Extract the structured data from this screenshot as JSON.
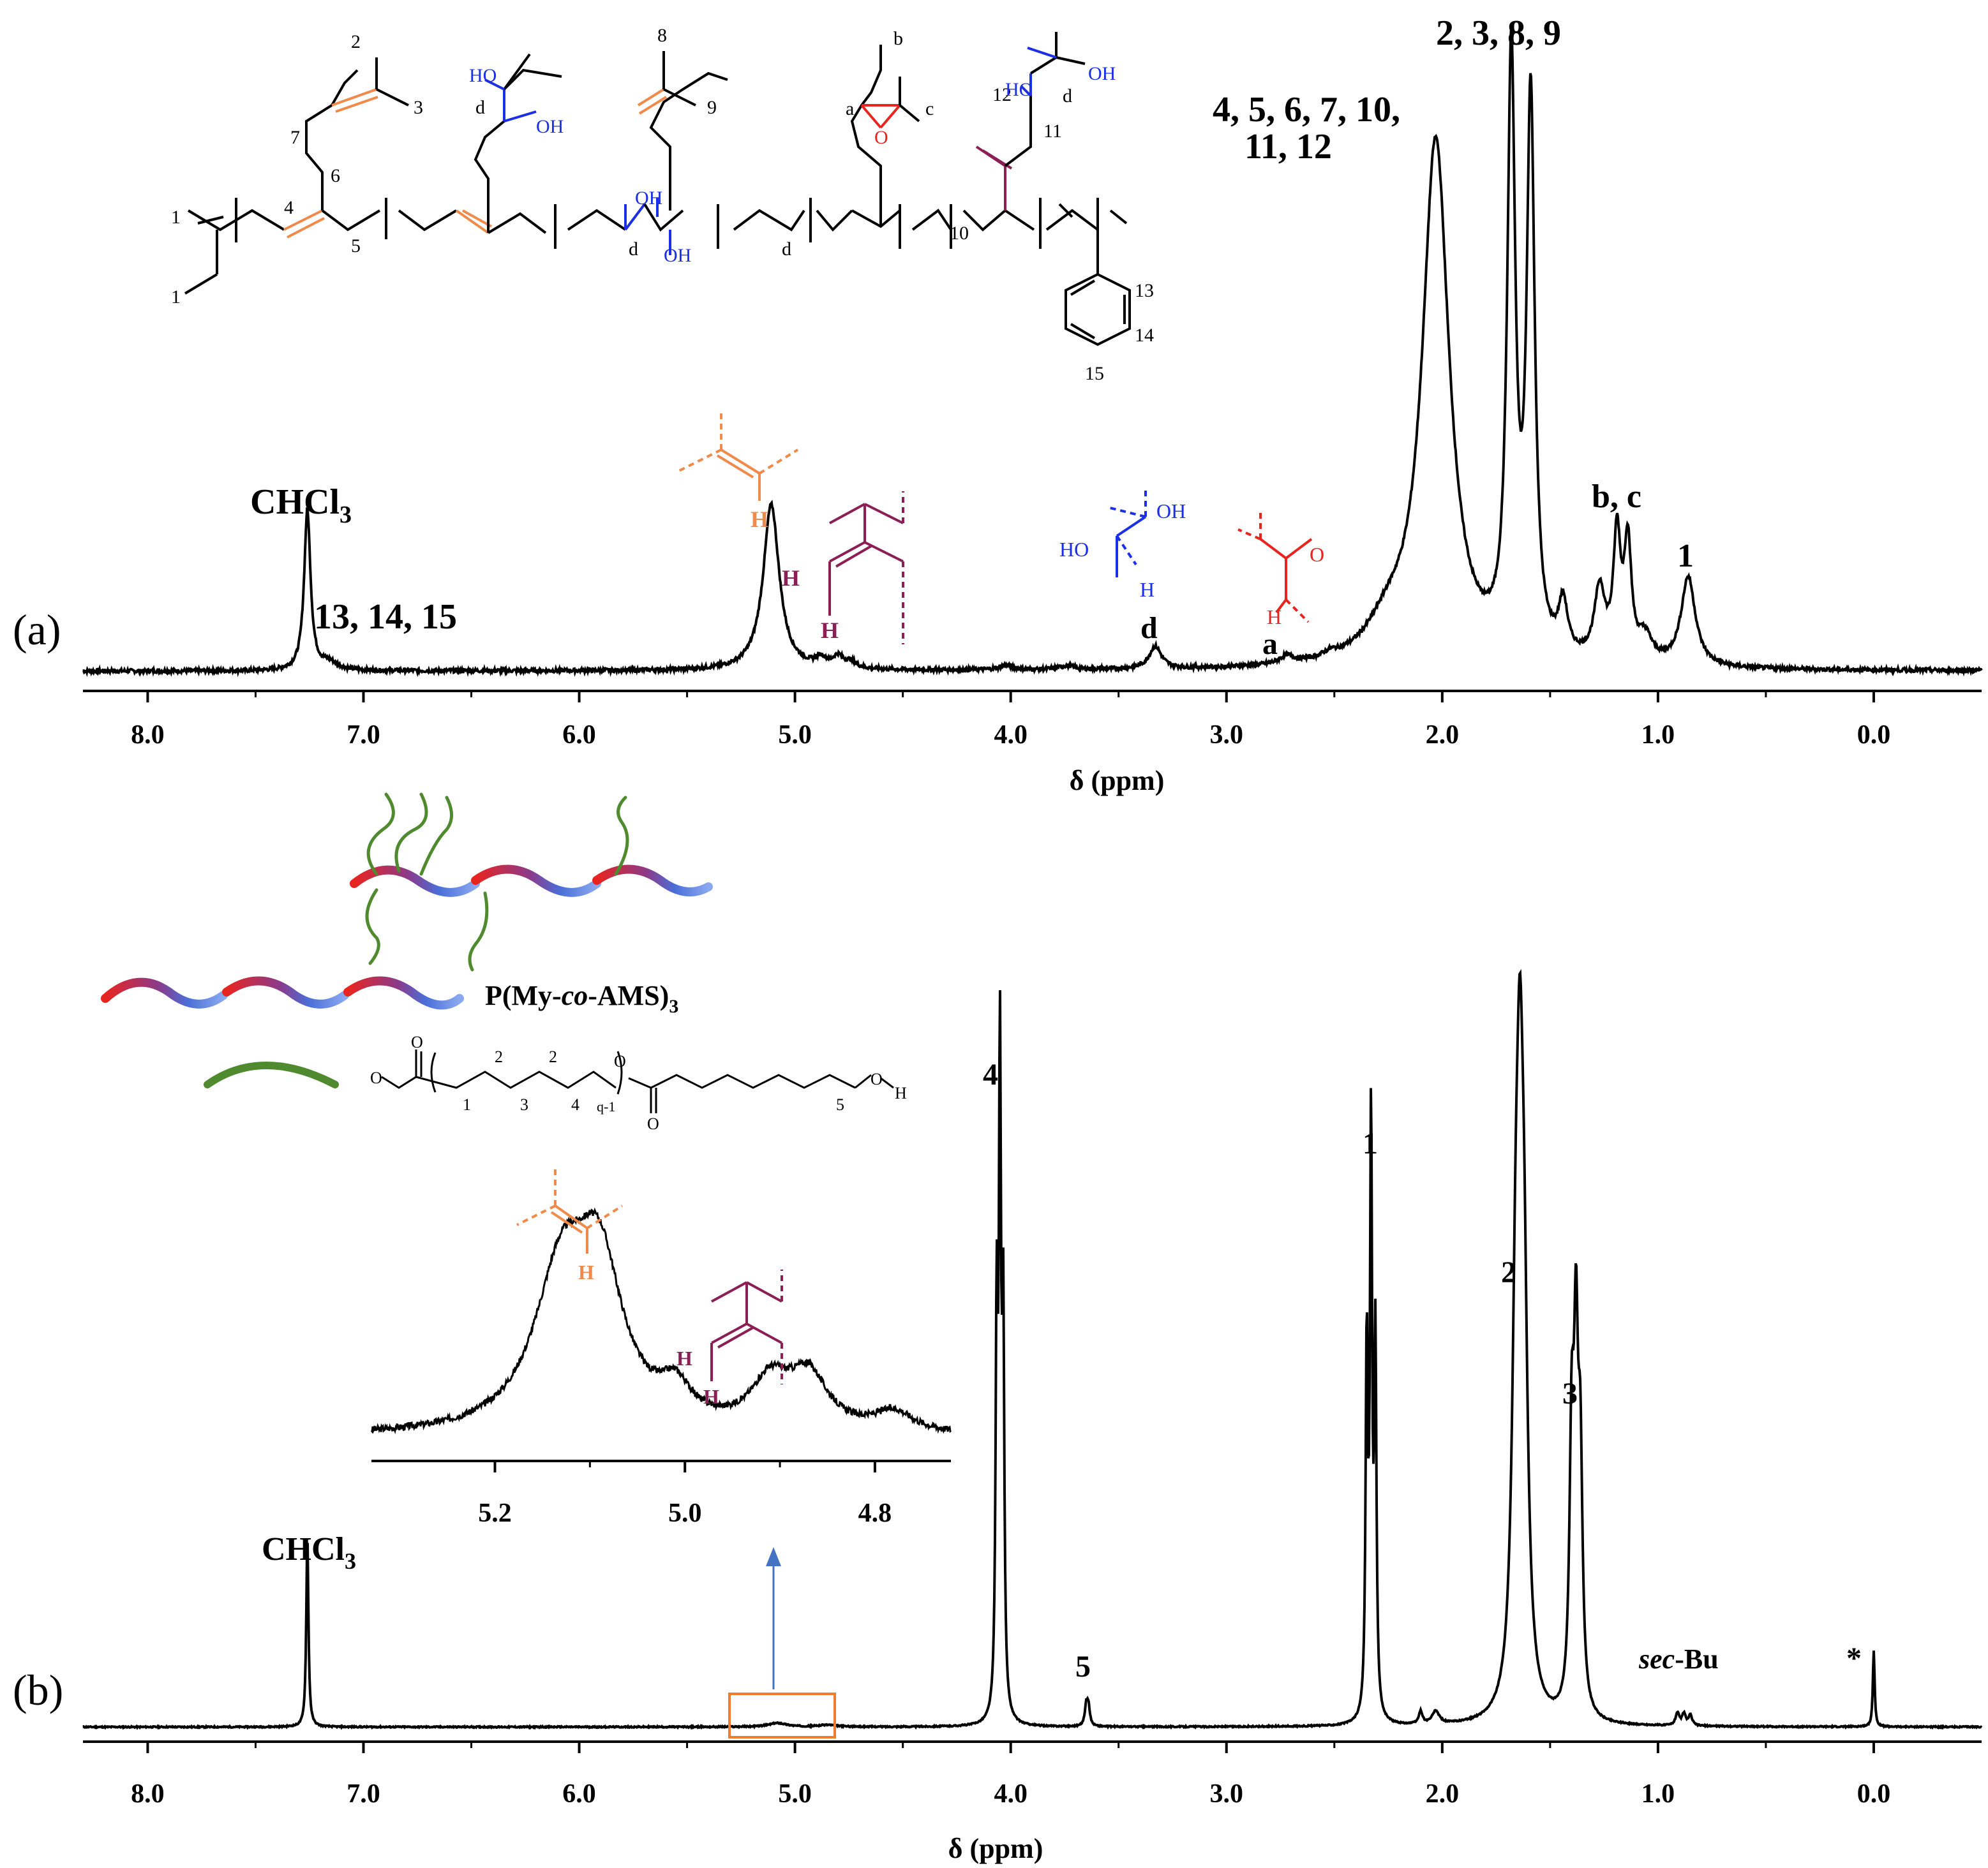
{
  "colors": {
    "ink": "#000000",
    "orange": "#f08a4b",
    "maroon": "#8b1f55",
    "blue": "#1a2fe6",
    "red": "#e8241f",
    "green": "#4f8a2e",
    "arrow_blue": "#4472c4",
    "box_orange": "#ed7d31"
  },
  "chart_data": [
    {
      "type": "line",
      "panel_label": "(a)",
      "xlabel": "δ (ppm)",
      "x_reversed": true,
      "xlim": [
        8.3,
        -0.5
      ],
      "x_ticks": [
        8.0,
        7.0,
        6.0,
        5.0,
        4.0,
        3.0,
        2.0,
        1.0,
        0.0
      ],
      "x_tick_labels": [
        "8.0",
        "7.0",
        "6.0",
        "5.0",
        "4.0",
        "3.0",
        "2.0",
        "1.0",
        "0.0"
      ],
      "peaks": [
        {
          "shift": 7.26,
          "height": 0.25,
          "width": 0.018
        },
        {
          "shift": 7.16,
          "height": 0.012,
          "width": 0.05
        },
        {
          "shift": 5.11,
          "height": 0.26,
          "width": 0.045
        },
        {
          "shift": 4.88,
          "height": 0.014,
          "width": 0.03
        },
        {
          "shift": 4.8,
          "height": 0.018,
          "width": 0.03
        },
        {
          "shift": 4.74,
          "height": 0.01,
          "width": 0.03
        },
        {
          "shift": 4.02,
          "height": 0.007,
          "width": 0.04
        },
        {
          "shift": 3.74,
          "height": 0.006,
          "width": 0.04
        },
        {
          "shift": 3.33,
          "height": 0.035,
          "width": 0.035
        },
        {
          "shift": 2.72,
          "height": 0.012,
          "width": 0.04
        },
        {
          "shift": 2.52,
          "height": 0.007,
          "width": 0.04
        },
        {
          "shift": 2.25,
          "height": 0.05,
          "width": 0.12
        },
        {
          "shift": 2.03,
          "height": 0.82,
          "width": 0.075
        },
        {
          "shift": 1.68,
          "height": 0.92,
          "width": 0.022
        },
        {
          "shift": 1.59,
          "height": 0.86,
          "width": 0.022
        },
        {
          "shift": 1.44,
          "height": 0.08,
          "width": 0.025
        },
        {
          "shift": 1.27,
          "height": 0.11,
          "width": 0.03
        },
        {
          "shift": 1.19,
          "height": 0.19,
          "width": 0.02
        },
        {
          "shift": 1.14,
          "height": 0.18,
          "width": 0.02
        },
        {
          "shift": 1.06,
          "height": 0.04,
          "width": 0.04
        },
        {
          "shift": 0.86,
          "height": 0.14,
          "width": 0.04
        }
      ],
      "annotations": [
        {
          "text": "CHCl",
          "sub": "3",
          "shift": 7.26
        },
        {
          "text": "13, 14, 15",
          "shift": 6.75
        },
        {
          "text": "d",
          "shift": 3.33
        },
        {
          "text": "a",
          "shift": 2.72
        },
        {
          "text": "4, 5, 6, 7, 10,",
          "shift": 2.7
        },
        {
          "text": "11, 12",
          "shift": 2.4
        },
        {
          "text": "2, 3, 8, 9",
          "shift": 1.66
        },
        {
          "text": "b, c",
          "shift": 1.18
        },
        {
          "text": "1",
          "shift": 0.86
        }
      ]
    },
    {
      "type": "line",
      "panel_label": "(b)",
      "xlabel": "δ (ppm)",
      "x_reversed": true,
      "xlim": [
        8.3,
        -0.5
      ],
      "x_ticks": [
        8.0,
        7.0,
        6.0,
        5.0,
        4.0,
        3.0,
        2.0,
        1.0,
        0.0
      ],
      "x_tick_labels": [
        "8.0",
        "7.0",
        "6.0",
        "5.0",
        "4.0",
        "3.0",
        "2.0",
        "1.0",
        "0.0"
      ],
      "peaks": [
        {
          "shift": 7.26,
          "height": 0.3,
          "width": 0.006
        },
        {
          "shift": 5.08,
          "height": 0.006,
          "width": 0.05
        },
        {
          "shift": 4.85,
          "height": 0.003,
          "width": 0.05
        },
        {
          "shift": 4.065,
          "height": 0.6,
          "width": 0.006
        },
        {
          "shift": 4.05,
          "height": 1.0,
          "width": 0.006
        },
        {
          "shift": 4.035,
          "height": 0.6,
          "width": 0.006
        },
        {
          "shift": 3.65,
          "height": 0.03,
          "width": 0.008
        },
        {
          "shift": 3.64,
          "height": 0.03,
          "width": 0.008
        },
        {
          "shift": 2.35,
          "height": 0.58,
          "width": 0.006
        },
        {
          "shift": 2.33,
          "height": 0.92,
          "width": 0.006
        },
        {
          "shift": 2.31,
          "height": 0.58,
          "width": 0.006
        },
        {
          "shift": 2.1,
          "height": 0.02,
          "width": 0.01
        },
        {
          "shift": 2.03,
          "height": 0.02,
          "width": 0.02
        },
        {
          "shift": 1.66,
          "height": 0.45,
          "width": 0.02
        },
        {
          "shift": 1.64,
          "height": 0.73,
          "width": 0.02
        },
        {
          "shift": 1.62,
          "height": 0.45,
          "width": 0.02
        },
        {
          "shift": 1.4,
          "height": 0.4,
          "width": 0.012
        },
        {
          "shift": 1.38,
          "height": 0.52,
          "width": 0.012
        },
        {
          "shift": 1.36,
          "height": 0.36,
          "width": 0.012
        },
        {
          "shift": 0.91,
          "height": 0.02,
          "width": 0.01
        },
        {
          "shift": 0.88,
          "height": 0.018,
          "width": 0.01
        },
        {
          "shift": 0.85,
          "height": 0.016,
          "width": 0.01
        },
        {
          "shift": 0.0,
          "height": 0.12,
          "width": 0.005
        }
      ],
      "annotations": [
        {
          "text": "CHCl",
          "sub": "3",
          "shift": 7.26
        },
        {
          "text": "5",
          "shift": 3.64
        },
        {
          "text": "4",
          "shift": 4.05
        },
        {
          "text": "1",
          "shift": 2.33
        },
        {
          "text": "2",
          "shift": 1.64
        },
        {
          "text": "3",
          "shift": 1.38
        },
        {
          "text": "sec-Bu",
          "shift": 0.88
        },
        {
          "text": "*",
          "shift": 0.0
        }
      ],
      "inset": {
        "xlim": [
          5.33,
          4.72
        ],
        "x_ticks": [
          5.2,
          5.0,
          4.8
        ],
        "x_tick_labels": [
          "5.2",
          "5.0",
          "4.8"
        ],
        "peaks": [
          {
            "shift": 5.13,
            "height": 0.9,
            "width": 0.035
          },
          {
            "shift": 5.09,
            "height": 0.9,
            "width": 0.03
          },
          {
            "shift": 5.01,
            "height": 0.2,
            "width": 0.02
          },
          {
            "shift": 4.91,
            "height": 0.28,
            "width": 0.025
          },
          {
            "shift": 4.87,
            "height": 0.32,
            "width": 0.025
          },
          {
            "shift": 4.78,
            "height": 0.12,
            "width": 0.025
          }
        ]
      }
    }
  ],
  "structure_a": {
    "numbers": [
      "1",
      "1",
      "2",
      "3",
      "4",
      "5",
      "6",
      "7",
      "8",
      "9",
      "10",
      "11",
      "12",
      "13",
      "14",
      "15"
    ],
    "letters": [
      "a",
      "b",
      "c",
      "d",
      "d",
      "d",
      "d"
    ],
    "oh_labels": [
      "HO",
      "OH",
      "OH",
      "OH",
      "HO",
      "OH"
    ],
    "epoxide_o": "O"
  },
  "structure_b": {
    "polymer_label_prefix": "P(My-",
    "polymer_label_co": "co",
    "polymer_label_suffix": "-AMS)",
    "polymer_label_sub": "3",
    "pcl_numbers": [
      "1",
      "2",
      "3",
      "2",
      "4",
      "5"
    ],
    "pcl_repeat": "q-1",
    "pcl_o": [
      "O",
      "O",
      "O",
      "O",
      "O"
    ],
    "pcl_oh": "OH"
  },
  "fragments": {
    "h_label": "H",
    "oh": "OH",
    "ho": "HO",
    "o": "O"
  }
}
